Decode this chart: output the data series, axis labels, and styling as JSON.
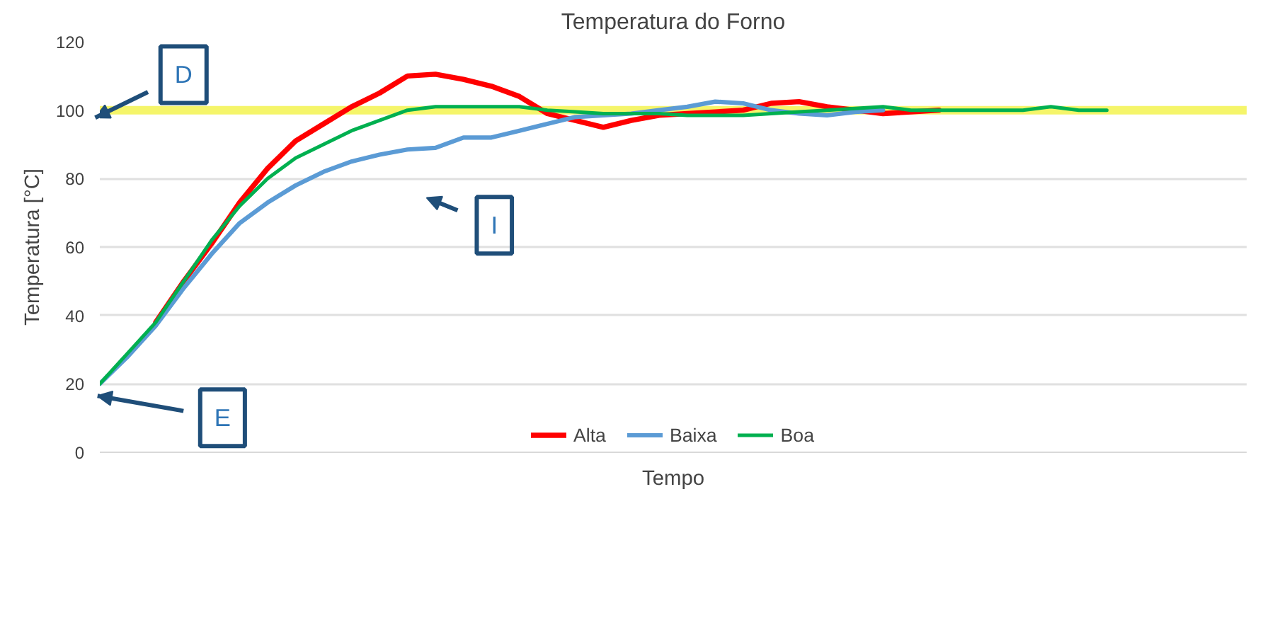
{
  "chart_data": {
    "type": "line",
    "title": "Temperatura do Forno",
    "xlabel": "Tempo",
    "ylabel": "Temperatura [°C]",
    "categories": [
      null,
      null,
      null,
      null,
      null,
      null,
      null,
      null,
      null,
      null,
      null,
      null,
      null,
      null,
      null,
      null,
      null,
      null,
      null,
      null,
      null,
      null,
      null,
      null,
      null,
      null,
      null,
      null,
      null,
      null,
      null,
      null,
      null,
      null,
      null,
      null,
      null,
      null,
      null,
      null,
      null,
      null
    ],
    "series": [
      {
        "name": "Alta",
        "color": "#ff0000",
        "values": [
          null,
          null,
          38,
          50,
          61,
          73,
          83,
          91,
          96,
          101,
          105,
          110,
          110.5,
          109,
          107,
          104,
          99,
          97,
          95,
          97,
          98.5,
          99,
          99.5,
          100,
          102,
          102.5,
          101,
          100,
          99,
          99.5,
          100,
          null,
          null,
          null,
          null,
          null,
          null,
          null,
          null,
          null,
          null,
          null
        ]
      },
      {
        "name": "Baixa",
        "color": "#5b9bd5",
        "values": [
          20,
          28,
          37,
          48,
          58,
          67,
          73,
          78,
          82,
          85,
          87,
          88.5,
          89,
          92,
          92,
          94,
          96,
          98,
          98.5,
          99,
          100,
          101,
          102.5,
          102,
          100,
          99,
          98.5,
          99.5,
          100,
          null,
          null,
          null,
          null,
          null,
          null,
          null,
          null,
          null,
          null,
          null,
          null,
          null
        ]
      },
      {
        "name": "Boa",
        "color": "#00b050",
        "values": [
          20,
          29,
          38,
          50,
          62,
          72,
          80,
          86,
          90,
          94,
          97,
          100,
          101,
          101,
          101,
          101,
          100,
          99.5,
          99,
          99,
          99,
          98.5,
          98.5,
          98.5,
          99,
          99.5,
          100,
          100.5,
          101,
          100,
          100,
          100,
          100,
          100,
          101,
          100,
          100,
          null,
          null,
          null,
          null,
          null
        ]
      }
    ],
    "ylim": [
      0,
      120
    ],
    "yticks": [
      0,
      20,
      40,
      60,
      80,
      100,
      120
    ],
    "grid": "y",
    "legend": "bottom",
    "tick_labels": "y",
    "ref_lines": [
      {
        "axis": "y",
        "value": 100,
        "label": null,
        "color": "#f5f56a",
        "line_style": "solid"
      }
    ],
    "annotations": [
      "D",
      "I",
      "E"
    ]
  }
}
